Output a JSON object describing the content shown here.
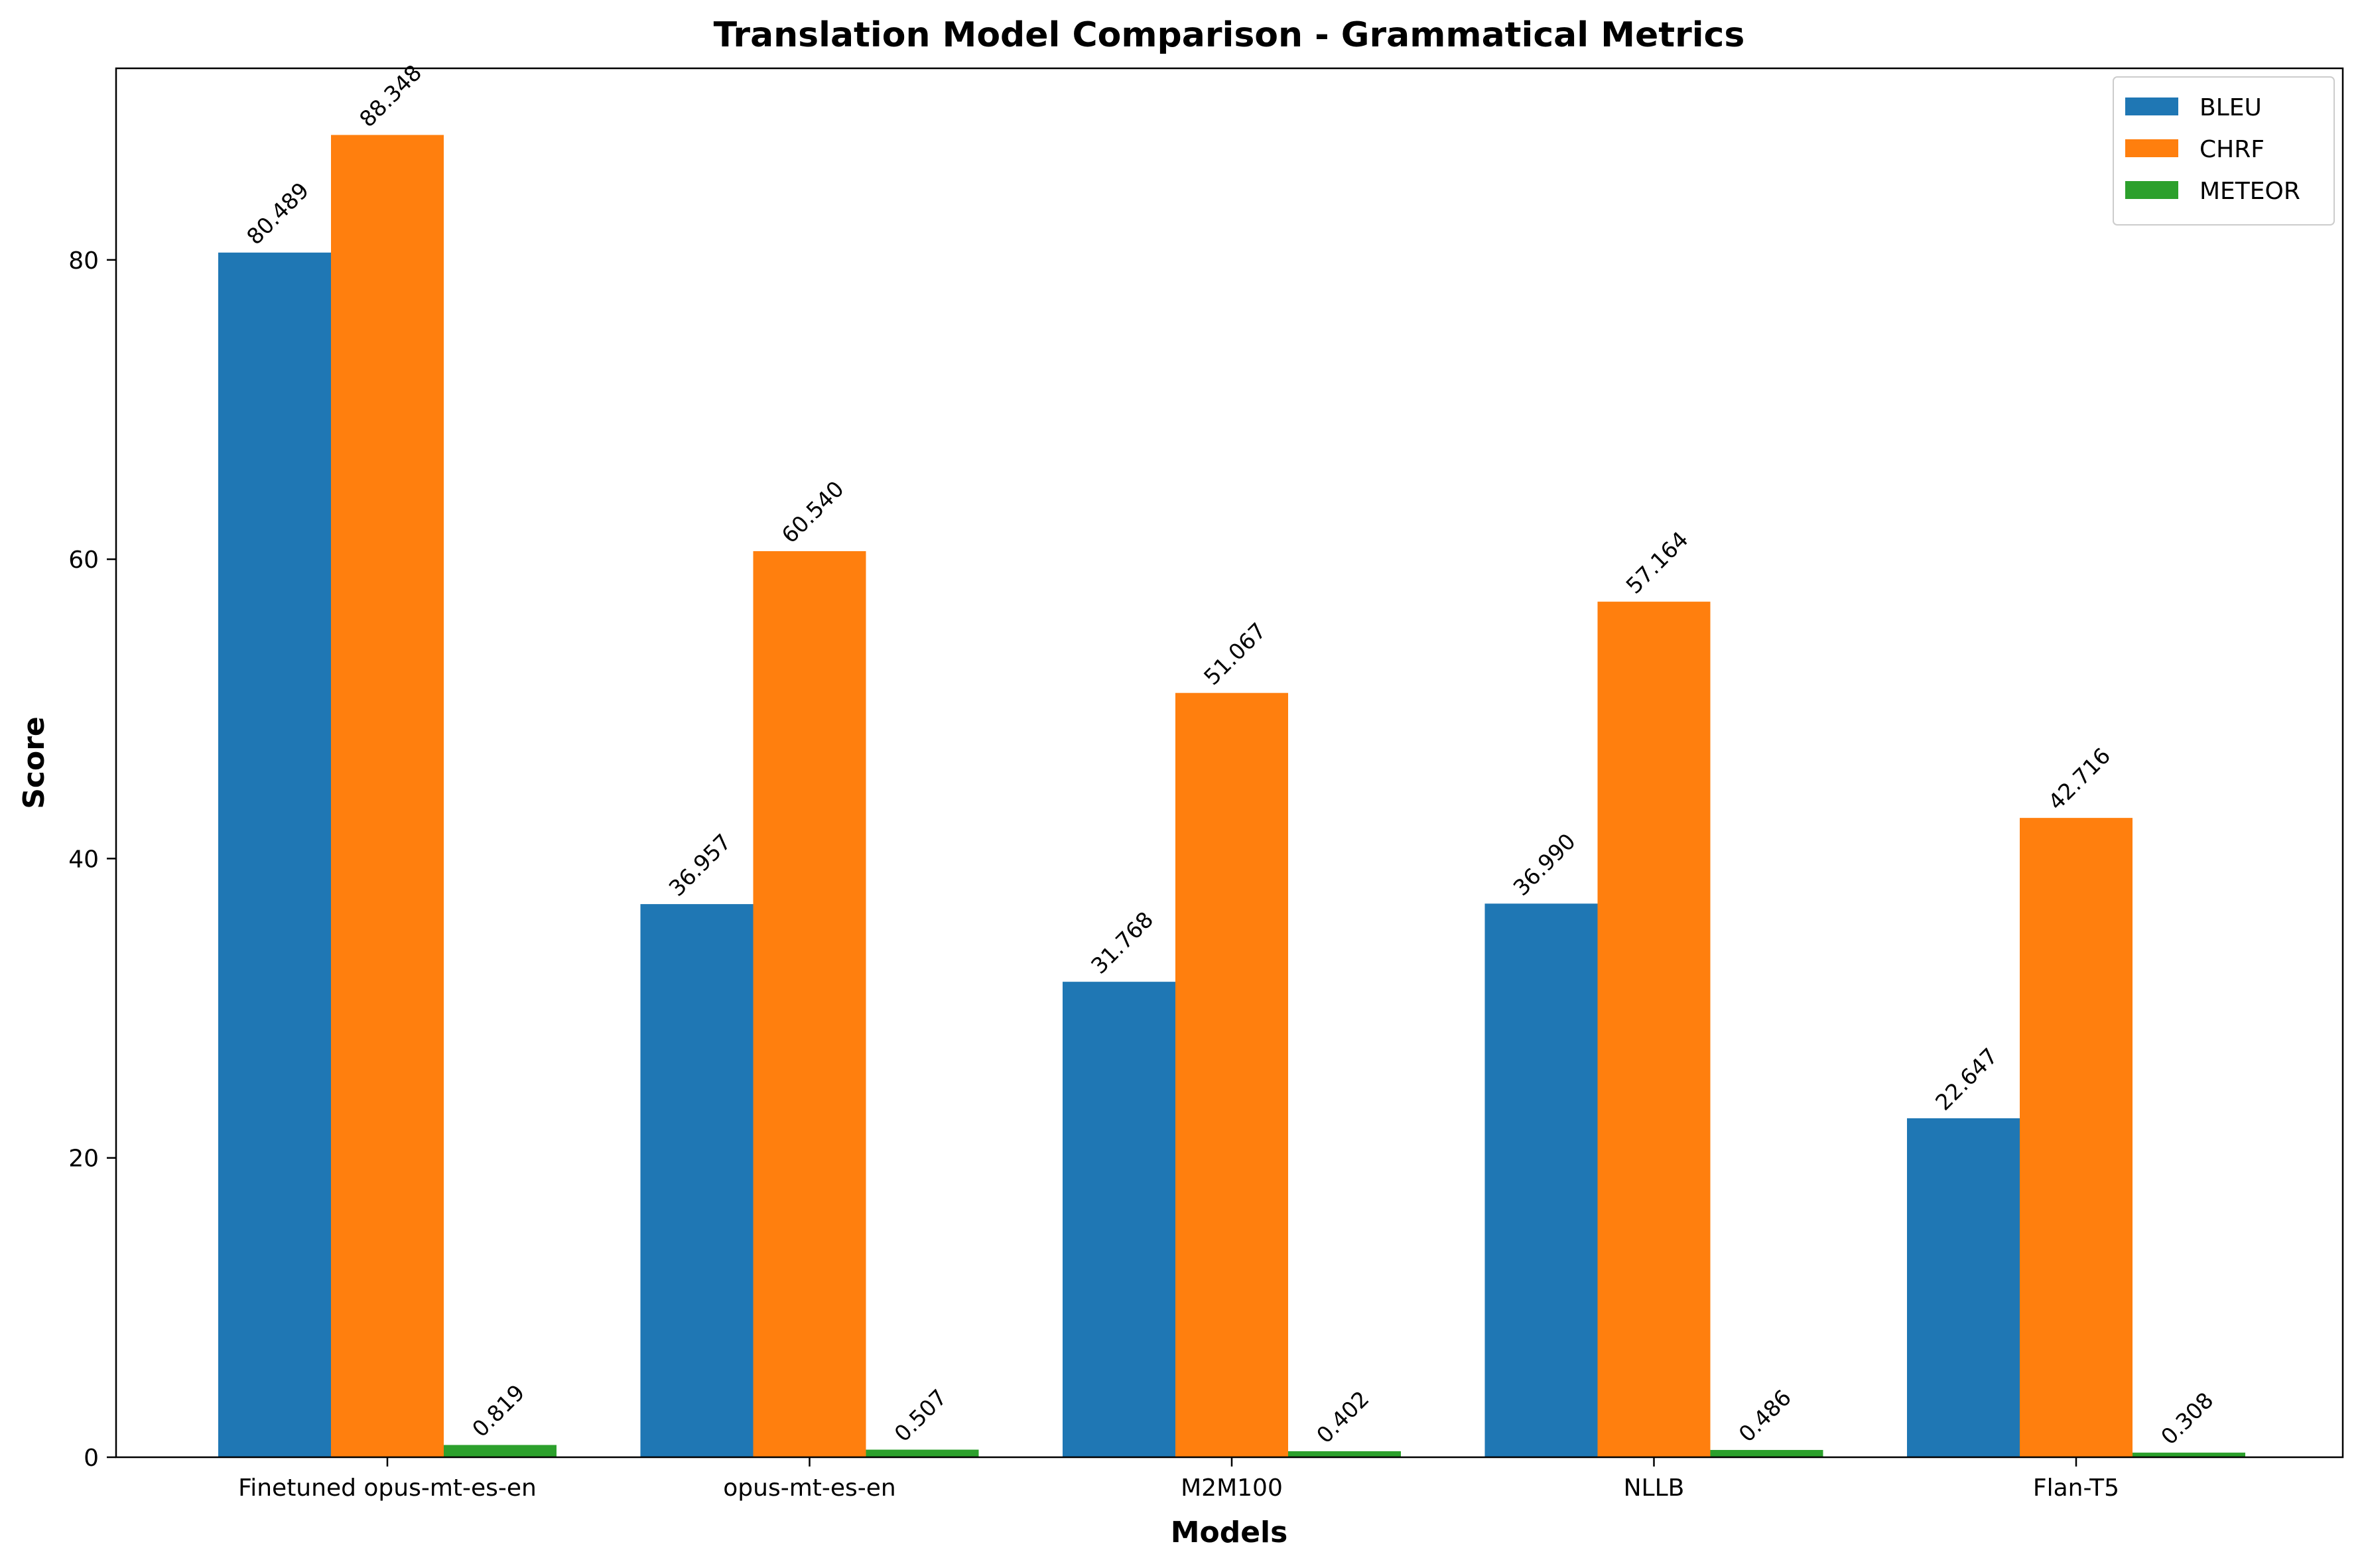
{
  "chart_data": {
    "type": "bar",
    "title": "Translation Model Comparison - Grammatical Metrics",
    "xlabel": "Models",
    "ylabel": "Score",
    "categories": [
      "Finetuned opus-mt-es-en",
      "opus-mt-es-en",
      "M2M100",
      "NLLB",
      "Flan-T5"
    ],
    "series": [
      {
        "name": "BLEU",
        "color": "#1f77b4",
        "values": [
          80.489,
          36.957,
          31.768,
          36.99,
          22.647
        ],
        "labels": [
          "80.489",
          "36.957",
          "31.768",
          "36.990",
          "22.647"
        ]
      },
      {
        "name": "CHRF",
        "color": "#ff7f0e",
        "values": [
          88.348,
          60.54,
          51.067,
          57.164,
          42.716
        ],
        "labels": [
          "88.348",
          "60.540",
          "51.067",
          "57.164",
          "42.716"
        ]
      },
      {
        "name": "METEOR",
        "color": "#2ca02c",
        "values": [
          0.819,
          0.507,
          0.402,
          0.486,
          0.308
        ],
        "labels": [
          "0.819",
          "0.507",
          "0.402",
          "0.486",
          "0.308"
        ]
      }
    ],
    "ylim": [
      0,
      92.8
    ],
    "yticks": [
      0,
      20,
      40,
      60,
      80
    ],
    "grid": false,
    "legend_position": "top-right"
  }
}
